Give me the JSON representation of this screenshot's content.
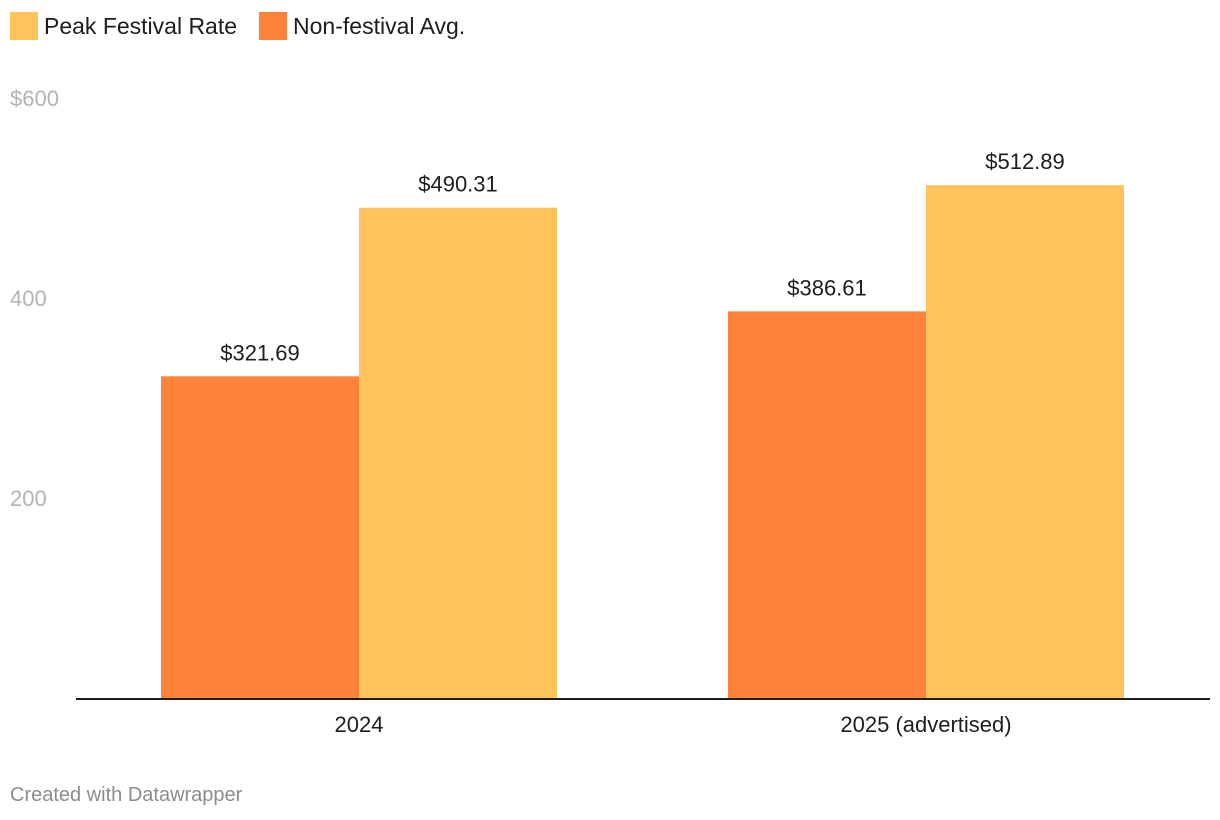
{
  "legend": [
    {
      "label": "Peak Festival Rate",
      "color": "#fec45b"
    },
    {
      "label": "Non-festival Avg.",
      "color": "#fe8339"
    }
  ],
  "footer": {
    "credit": "Created with Datawrapper"
  },
  "chart_data": {
    "type": "bar",
    "categories": [
      "2024",
      "2025 (advertised)"
    ],
    "series": [
      {
        "name": "Non-festival Avg.",
        "color": "#fe8339",
        "values": [
          321.69,
          386.61
        ],
        "labels": [
          "$321.69",
          "$386.61"
        ]
      },
      {
        "name": "Peak Festival Rate",
        "color": "#fec45b",
        "values": [
          490.31,
          512.89
        ],
        "labels": [
          "$490.31",
          "$512.89"
        ]
      }
    ],
    "ylim": [
      0,
      600
    ],
    "yticks": [
      200,
      400,
      600
    ],
    "ytick_labels": [
      "200",
      "400",
      "$600"
    ],
    "title": "",
    "xlabel": "",
    "ylabel": "",
    "grid": false,
    "legend_position": "top-left"
  }
}
